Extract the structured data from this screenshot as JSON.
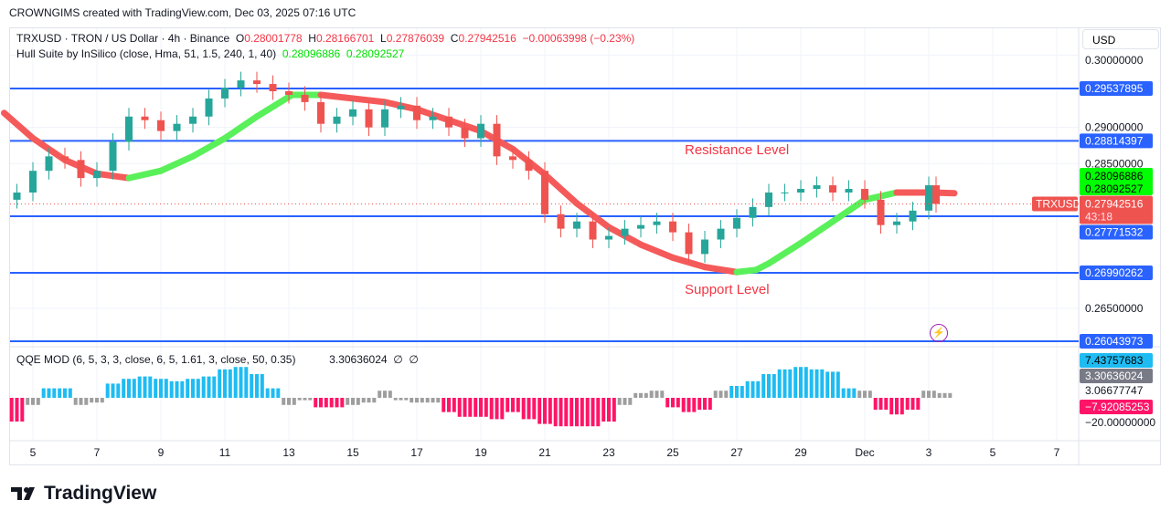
{
  "credit": "CROWNGIMS created with TradingView.com, Dec 03, 2025 07:16 UTC",
  "legend": {
    "symbol": "TRXUSD · TRON / US Dollar · 4h · Binance",
    "o_label": "O",
    "o": "0.28001778",
    "h_label": "H",
    "h": "0.28166701",
    "l_label": "L",
    "l": "0.27876039",
    "c_label": "C",
    "c": "0.27942516",
    "change": "−0.00063998 (−0.23%)"
  },
  "hull_legend": {
    "name": "Hull Suite by InSilico (close, Hma, 51, 1.5, 240, 1, 40)",
    "v1": "0.28096886",
    "v2": "0.28092527"
  },
  "qqe_legend": {
    "name": "QQE MOD (6, 5, 3, 3, close, 6, 5, 1.61, 3, close, 50, 0.35)",
    "value": "3.30636024",
    "s1": "∅",
    "s2": "∅"
  },
  "currency": "USD",
  "annotations": {
    "resistance": "Resistance Level",
    "support": "Support Level"
  },
  "price_tag": {
    "symbol": "TRXUSD",
    "price": "0.27942516",
    "countdown": "43:18"
  },
  "logo": "TradingView",
  "colors": {
    "up": "#26a69a",
    "down": "#ef5350",
    "level": "#2962ff",
    "hull_up": "#5af05a",
    "hull_down": "#f55a5a",
    "qqe_up": "#1ebcf2",
    "qqe_down": "#ff1468",
    "qqe_neutral": "#9e9e9e"
  },
  "chart_data": {
    "type": "candlestick",
    "price_axis": {
      "ticks": [
        "0.30000000",
        "0.29000000",
        "0.28500000",
        "0.26500000"
      ],
      "tick_values": [
        0.3,
        0.29,
        0.285,
        0.265
      ]
    },
    "time_axis": {
      "labels": [
        "5",
        "7",
        "9",
        "11",
        "13",
        "15",
        "17",
        "19",
        "21",
        "23",
        "25",
        "27",
        "29",
        "Dec",
        "3",
        "5",
        "7"
      ]
    },
    "levels": [
      {
        "label": "0.29537895",
        "value": 0.29537895
      },
      {
        "label": "0.28814397",
        "value": 0.28814397
      },
      {
        "label": "0.27771532",
        "value": 0.27771532
      },
      {
        "label": "0.26990262",
        "value": 0.26990262
      },
      {
        "label": "0.26043973",
        "value": 0.26043973
      }
    ],
    "hull_labels": [
      "0.28096886",
      "0.28092527"
    ],
    "closes": [
      0.281,
      0.284,
      0.286,
      0.2855,
      0.283,
      0.284,
      0.288,
      0.2915,
      0.291,
      0.2895,
      0.2905,
      0.2915,
      0.294,
      0.2955,
      0.2965,
      0.296,
      0.295,
      0.2945,
      0.2935,
      0.2905,
      0.2915,
      0.2925,
      0.29,
      0.2925,
      0.293,
      0.291,
      0.2915,
      0.29,
      0.2885,
      0.2905,
      0.286,
      0.2855,
      0.284,
      0.278,
      0.276,
      0.277,
      0.2745,
      0.275,
      0.276,
      0.2765,
      0.277,
      0.2755,
      0.2725,
      0.2745,
      0.276,
      0.2775,
      0.279,
      0.281,
      0.281,
      0.2815,
      0.282,
      0.281,
      0.2815,
      0.28,
      0.2765,
      0.277,
      0.2785,
      0.282,
      0.27942516
    ],
    "hull": {
      "days": [
        -0.9,
        0,
        1,
        2,
        3,
        4,
        5,
        6,
        7,
        8.1,
        9,
        10,
        11,
        12,
        13,
        14,
        15,
        16,
        17,
        18,
        19,
        20,
        21,
        22,
        22.6,
        23,
        24,
        25,
        26,
        27,
        28.1,
        28.8
      ],
      "values": [
        0.292,
        0.2885,
        0.2855,
        0.2836,
        0.283,
        0.284,
        0.286,
        0.2885,
        0.2915,
        0.2945,
        0.2945,
        0.294,
        0.2935,
        0.2925,
        0.291,
        0.2895,
        0.287,
        0.2835,
        0.2795,
        0.2762,
        0.2738,
        0.272,
        0.2707,
        0.27,
        0.2703,
        0.2712,
        0.274,
        0.277,
        0.28,
        0.281,
        0.281,
        0.2809
      ],
      "trend": [
        "down",
        "down",
        "down",
        "down",
        "up",
        "up",
        "up",
        "up",
        "up",
        "up",
        "down",
        "down",
        "down",
        "down",
        "down",
        "down",
        "down",
        "down",
        "down",
        "down",
        "down",
        "down",
        "down",
        "up",
        "up",
        "up",
        "up",
        "up",
        "up",
        "down",
        "down",
        "down"
      ]
    },
    "qqe": {
      "axis_labels": [
        "7.43757683",
        "3.30636024",
        "3.06677747",
        "−7.92085253",
        "−20.00000000"
      ],
      "values": [
        -10,
        -3,
        4,
        4,
        -3,
        -2,
        6,
        8,
        9,
        8,
        7,
        8,
        9,
        12,
        13,
        10,
        4,
        -3,
        -1,
        -4,
        -4,
        -3,
        -2,
        3,
        -1,
        -2,
        -2,
        -6,
        -8,
        -8,
        -9,
        -6,
        -9,
        -11,
        -12,
        -12,
        -12,
        -10,
        -3,
        2,
        3,
        -4,
        -6,
        -5,
        3,
        5,
        7,
        10,
        12,
        13,
        12,
        11,
        4,
        3,
        -5,
        -7,
        -5,
        3,
        2
      ]
    }
  }
}
